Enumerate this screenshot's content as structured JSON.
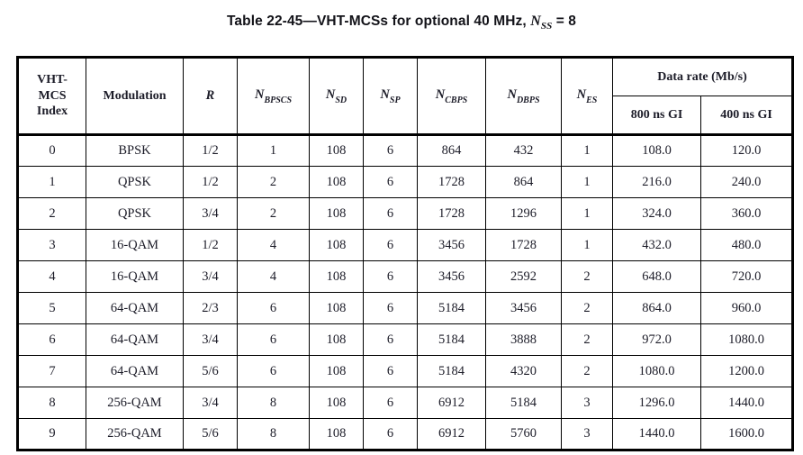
{
  "title": {
    "prefix": "Table 22-45—VHT-MCSs for optional 40 MHz, ",
    "var": "N",
    "var_sub": "SS",
    "suffix": " = 8"
  },
  "table": {
    "header": {
      "index_line1": "VHT-",
      "index_line2": "MCS",
      "index_line3": "Index",
      "modulation": "Modulation",
      "r": "R",
      "n_cols": [
        {
          "base": "N",
          "sub": "BPSCS"
        },
        {
          "base": "N",
          "sub": "SD"
        },
        {
          "base": "N",
          "sub": "SP"
        },
        {
          "base": "N",
          "sub": "CBPS"
        },
        {
          "base": "N",
          "sub": "DBPS"
        },
        {
          "base": "N",
          "sub": "ES"
        }
      ],
      "data_rate": "Data rate (Mb/s)",
      "gi_800": "800 ns GI",
      "gi_400": "400 ns GI"
    },
    "rows": [
      [
        "0",
        "BPSK",
        "1/2",
        "1",
        "108",
        "6",
        "864",
        "432",
        "1",
        "108.0",
        "120.0"
      ],
      [
        "1",
        "QPSK",
        "1/2",
        "2",
        "108",
        "6",
        "1728",
        "864",
        "1",
        "216.0",
        "240.0"
      ],
      [
        "2",
        "QPSK",
        "3/4",
        "2",
        "108",
        "6",
        "1728",
        "1296",
        "1",
        "324.0",
        "360.0"
      ],
      [
        "3",
        "16-QAM",
        "1/2",
        "4",
        "108",
        "6",
        "3456",
        "1728",
        "1",
        "432.0",
        "480.0"
      ],
      [
        "4",
        "16-QAM",
        "3/4",
        "4",
        "108",
        "6",
        "3456",
        "2592",
        "2",
        "648.0",
        "720.0"
      ],
      [
        "5",
        "64-QAM",
        "2/3",
        "6",
        "108",
        "6",
        "5184",
        "3456",
        "2",
        "864.0",
        "960.0"
      ],
      [
        "6",
        "64-QAM",
        "3/4",
        "6",
        "108",
        "6",
        "5184",
        "3888",
        "2",
        "972.0",
        "1080.0"
      ],
      [
        "7",
        "64-QAM",
        "5/6",
        "6",
        "108",
        "6",
        "5184",
        "4320",
        "2",
        "1080.0",
        "1200.0"
      ],
      [
        "8",
        "256-QAM",
        "3/4",
        "8",
        "108",
        "6",
        "6912",
        "5184",
        "3",
        "1296.0",
        "1440.0"
      ],
      [
        "9",
        "256-QAM",
        "5/6",
        "8",
        "108",
        "6",
        "6912",
        "5760",
        "3",
        "1440.0",
        "1600.0"
      ]
    ]
  },
  "colors": {
    "background": "#ffffff",
    "text": "#1c1c28",
    "border": "#000000"
  }
}
